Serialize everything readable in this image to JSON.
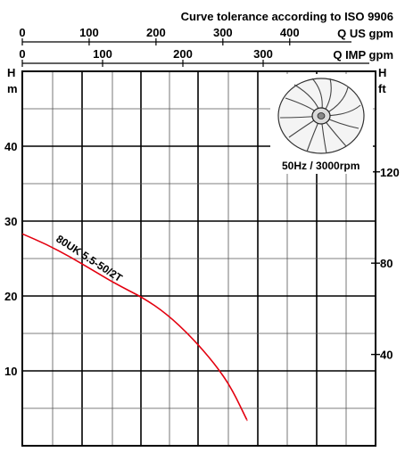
{
  "chart_data": {
    "type": "line",
    "title": "Curve tolerance according to ISO 9906",
    "top_axis": {
      "label": "Q US gpm",
      "ticks": [
        {
          "value": 0,
          "label": "0"
        },
        {
          "value": 100,
          "label": "100"
        },
        {
          "value": 200,
          "label": "200"
        },
        {
          "value": 300,
          "label": "300"
        },
        {
          "value": 400,
          "label": "400"
        }
      ]
    },
    "x_axis": {
      "label": "Q IMP gpm",
      "ticks": [
        {
          "value": 0,
          "label": "0"
        },
        {
          "value": 100,
          "label": "100"
        },
        {
          "value": 200,
          "label": "200"
        },
        {
          "value": 300,
          "label": "300"
        }
      ],
      "range": [
        0,
        440
      ]
    },
    "y_left": {
      "label_top": "H",
      "unit": "m",
      "range": [
        0,
        50
      ],
      "ticks": [
        {
          "value": 10,
          "label": "10"
        },
        {
          "value": 20,
          "label": "20"
        },
        {
          "value": 30,
          "label": "30"
        },
        {
          "value": 40,
          "label": "40"
        }
      ]
    },
    "y_right": {
      "label_top": "H",
      "unit": "ft",
      "ticks": [
        {
          "value": 40,
          "label": "40"
        },
        {
          "value": 80,
          "label": "80"
        },
        {
          "value": 120,
          "label": "120"
        }
      ]
    },
    "badge": "50Hz / 3000rpm",
    "grid": true,
    "series": [
      {
        "name": "80UK 5.5-50/2T",
        "color": "#e3000f",
        "x": [
          0,
          30,
          60,
          90,
          120,
          150,
          180,
          210,
          240,
          260,
          280
        ],
        "y": [
          28.3,
          26.9,
          25.2,
          23.3,
          21.4,
          19.8,
          17.6,
          14.6,
          10.9,
          7.8,
          3.4
        ]
      }
    ]
  }
}
